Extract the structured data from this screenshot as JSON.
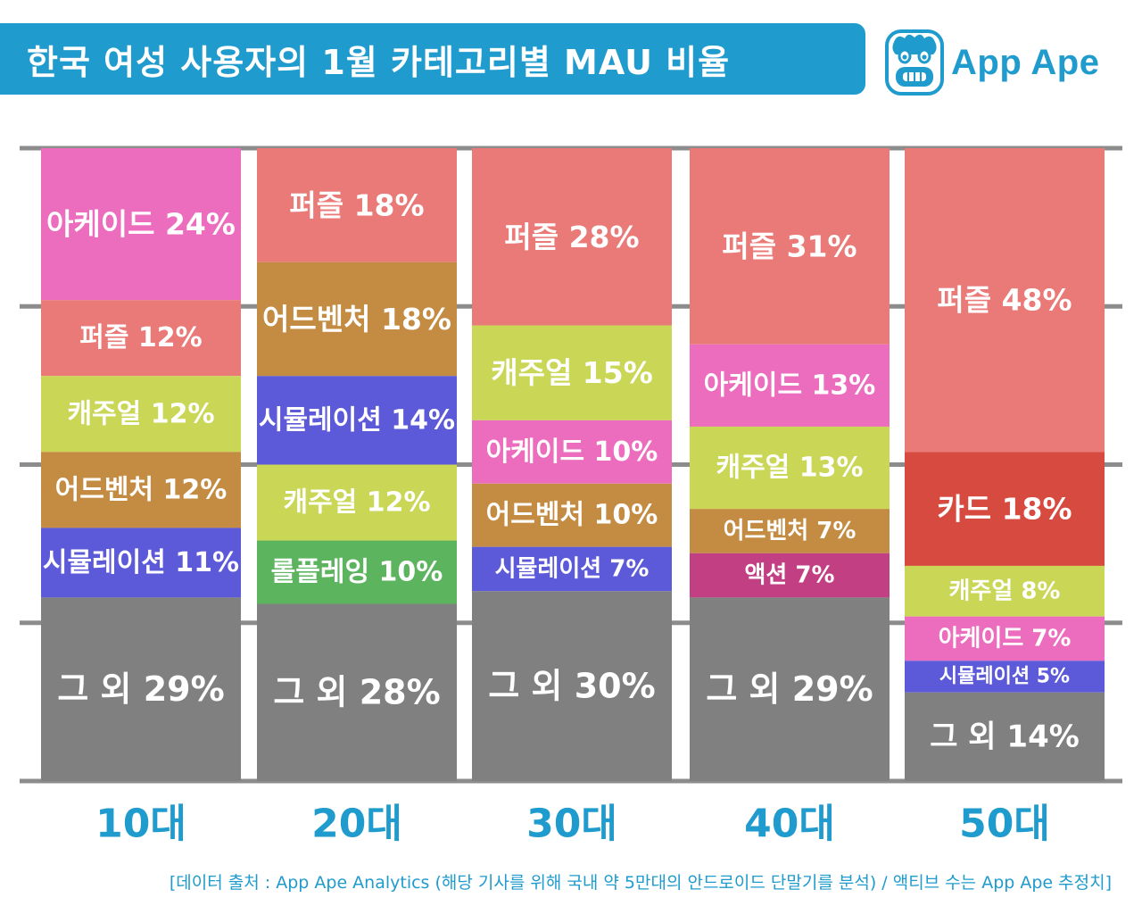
{
  "title": "한국 여성 사용자의 1월 카테고리별 MAU 비율",
  "logo": {
    "text": "App Ape"
  },
  "footnote": "[데이터 출처 : App Ape Analytics (해당 기사를 위해 국내 약 5만대의 안드로이드 단말기를 분석) / 액티브 수는 App Ape 추정치]",
  "colors": {
    "퍼즐": "#e97a78",
    "아케이드": "#ec6dbd",
    "캐주얼": "#c9d656",
    "어드벤처": "#c48c42",
    "시뮬레이션": "#5c5ad8",
    "롤플레잉": "#5cb55e",
    "액션": "#c23f84",
    "카드": "#d64a40",
    "그 외": "#808080",
    "gridline": "#8c8c8c",
    "xlabel": "#1f9bcd"
  },
  "chart_data": {
    "type": "bar",
    "stacked": true,
    "percent": true,
    "ylim": [
      0,
      100
    ],
    "grid": true,
    "categories": [
      "10대",
      "20대",
      "30대",
      "40대",
      "50대"
    ],
    "stacks": [
      {
        "category": "10대",
        "segments": [
          {
            "name": "아케이드",
            "value": 24
          },
          {
            "name": "퍼즐",
            "value": 12
          },
          {
            "name": "캐주얼",
            "value": 12
          },
          {
            "name": "어드벤처",
            "value": 12
          },
          {
            "name": "시뮬레이션",
            "value": 11
          },
          {
            "name": "그 외",
            "value": 29
          }
        ]
      },
      {
        "category": "20대",
        "segments": [
          {
            "name": "퍼즐",
            "value": 18
          },
          {
            "name": "어드벤처",
            "value": 18
          },
          {
            "name": "시뮬레이션",
            "value": 14
          },
          {
            "name": "캐주얼",
            "value": 12
          },
          {
            "name": "롤플레잉",
            "value": 10
          },
          {
            "name": "그 외",
            "value": 28
          }
        ]
      },
      {
        "category": "30대",
        "segments": [
          {
            "name": "퍼즐",
            "value": 28
          },
          {
            "name": "캐주얼",
            "value": 15
          },
          {
            "name": "아케이드",
            "value": 10
          },
          {
            "name": "어드벤처",
            "value": 10
          },
          {
            "name": "시뮬레이션",
            "value": 7
          },
          {
            "name": "그 외",
            "value": 30
          }
        ]
      },
      {
        "category": "40대",
        "segments": [
          {
            "name": "퍼즐",
            "value": 31
          },
          {
            "name": "아케이드",
            "value": 13
          },
          {
            "name": "캐주얼",
            "value": 13
          },
          {
            "name": "어드벤처",
            "value": 7
          },
          {
            "name": "액션",
            "value": 7
          },
          {
            "name": "그 외",
            "value": 29
          }
        ]
      },
      {
        "category": "50대",
        "segments": [
          {
            "name": "퍼즐",
            "value": 48
          },
          {
            "name": "카드",
            "value": 18
          },
          {
            "name": "캐주얼",
            "value": 8
          },
          {
            "name": "아케이드",
            "value": 7
          },
          {
            "name": "시뮬레이션",
            "value": 5
          },
          {
            "name": "그 외",
            "value": 14
          }
        ]
      }
    ]
  }
}
